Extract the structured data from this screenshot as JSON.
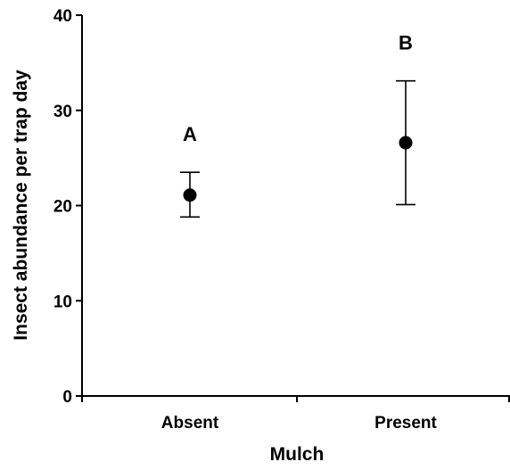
{
  "chart_data": {
    "type": "scatter",
    "title": "",
    "xlabel": "Mulch",
    "ylabel": "Insect abundance per trap day",
    "categories": [
      "Absent",
      "Present"
    ],
    "ylim": [
      0,
      40
    ],
    "yticks": [
      0,
      10,
      20,
      30,
      40
    ],
    "grid": false,
    "legend": "none",
    "points": [
      {
        "category": "Absent",
        "y": 21.1,
        "err_low": 18.8,
        "err_high": 23.5,
        "group_letter": "A"
      },
      {
        "category": "Present",
        "y": 26.6,
        "err_low": 20.1,
        "err_high": 33.1,
        "group_letter": "B"
      }
    ],
    "colors": {
      "marker": "#000000",
      "axis": "#000000"
    }
  }
}
